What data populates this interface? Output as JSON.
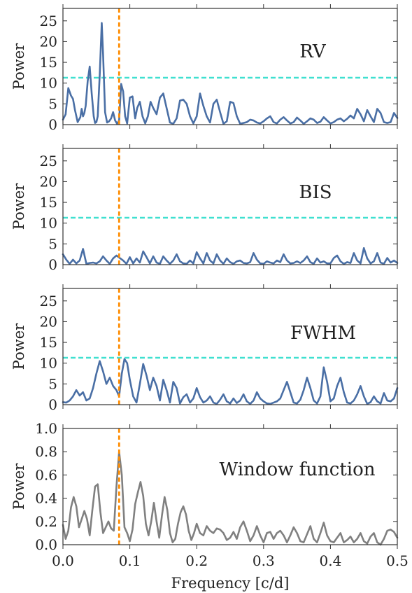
{
  "chart_data": [
    {
      "type": "line",
      "annotation": "RV",
      "ylabel": "Power",
      "xlabel": "",
      "xlim": [
        0,
        0.5
      ],
      "ylim": [
        0,
        28
      ],
      "yticks": [
        0,
        5,
        10,
        15,
        20,
        25
      ],
      "ytick_labels": [
        "0",
        "5",
        "10",
        "15",
        "20",
        "25"
      ],
      "threshold": 11.3,
      "marker_frequency": 0.084,
      "line_color": "#4a6fa5",
      "series": [
        {
          "x": [
            0,
            0.004,
            0.008,
            0.012,
            0.015,
            0.018,
            0.022,
            0.026,
            0.028,
            0.03,
            0.032,
            0.034,
            0.037,
            0.04,
            0.043,
            0.046,
            0.048,
            0.05,
            0.052,
            0.055,
            0.058,
            0.06,
            0.063,
            0.066,
            0.069,
            0.072,
            0.075,
            0.078,
            0.081,
            0.084,
            0.087,
            0.09,
            0.093,
            0.096,
            0.1,
            0.104,
            0.108,
            0.111,
            0.115,
            0.119,
            0.123,
            0.127,
            0.131,
            0.135,
            0.14,
            0.145,
            0.15,
            0.155,
            0.16,
            0.165,
            0.17,
            0.175,
            0.18,
            0.185,
            0.19,
            0.195,
            0.2,
            0.205,
            0.21,
            0.215,
            0.22,
            0.225,
            0.23,
            0.235,
            0.24,
            0.245,
            0.25,
            0.255,
            0.26,
            0.265,
            0.27,
            0.275,
            0.28,
            0.285,
            0.29,
            0.295,
            0.3,
            0.305,
            0.31,
            0.315,
            0.32,
            0.325,
            0.33,
            0.335,
            0.34,
            0.345,
            0.35,
            0.355,
            0.36,
            0.365,
            0.37,
            0.375,
            0.38,
            0.385,
            0.39,
            0.395,
            0.4,
            0.405,
            0.41,
            0.415,
            0.42,
            0.425,
            0.43,
            0.435,
            0.44,
            0.445,
            0.45,
            0.455,
            0.46,
            0.465,
            0.47,
            0.475,
            0.48,
            0.485,
            0.49,
            0.495,
            0.5
          ],
          "y": [
            1.2,
            2.5,
            8.8,
            7.0,
            6.2,
            3.5,
            0.6,
            1.8,
            3.8,
            2.0,
            2.8,
            4.5,
            10.5,
            14.0,
            7.5,
            2.0,
            0.4,
            0.6,
            2.0,
            12.0,
            24.5,
            17.0,
            3.0,
            0.5,
            0.8,
            1.5,
            3.0,
            1.0,
            0.2,
            1.0,
            9.8,
            8.0,
            2.0,
            0.3,
            6.5,
            6.8,
            1.5,
            4.0,
            5.5,
            2.0,
            0.3,
            2.0,
            5.5,
            4.0,
            2.5,
            6.5,
            7.5,
            4.0,
            0.5,
            0.2,
            1.5,
            5.8,
            6.0,
            5.0,
            2.0,
            0.3,
            2.0,
            7.5,
            4.5,
            2.0,
            0.5,
            5.0,
            6.0,
            3.0,
            0.2,
            0.8,
            5.5,
            5.2,
            2.0,
            0.2,
            0.4,
            0.6,
            1.2,
            1.0,
            0.5,
            0.3,
            0.8,
            1.5,
            2.0,
            0.6,
            0.3,
            1.2,
            1.8,
            1.0,
            0.3,
            0.6,
            1.7,
            1.0,
            0.2,
            0.8,
            1.5,
            1.2,
            0.4,
            0.7,
            1.8,
            1.0,
            0.3,
            0.6,
            1.2,
            1.5,
            0.8,
            1.4,
            2.2,
            1.5,
            3.8,
            2.5,
            0.8,
            3.5,
            2.0,
            0.6,
            3.8,
            2.8,
            0.6,
            0.4,
            0.6,
            2.8,
            1.6
          ]
        }
      ]
    },
    {
      "type": "line",
      "annotation": "BIS",
      "ylabel": "Power",
      "xlabel": "",
      "xlim": [
        0,
        0.5
      ],
      "ylim": [
        0,
        28
      ],
      "yticks": [
        0,
        5,
        10,
        15,
        20,
        25
      ],
      "ytick_labels": [
        "0",
        "5",
        "10",
        "15",
        "20",
        "25"
      ],
      "threshold": 11.3,
      "marker_frequency": 0.084,
      "line_color": "#4a6fa5",
      "series": [
        {
          "x": [
            0,
            0.005,
            0.01,
            0.015,
            0.02,
            0.025,
            0.03,
            0.035,
            0.04,
            0.045,
            0.05,
            0.055,
            0.06,
            0.065,
            0.07,
            0.075,
            0.08,
            0.085,
            0.09,
            0.095,
            0.1,
            0.105,
            0.11,
            0.115,
            0.12,
            0.125,
            0.13,
            0.135,
            0.14,
            0.145,
            0.15,
            0.155,
            0.16,
            0.165,
            0.17,
            0.175,
            0.18,
            0.185,
            0.19,
            0.195,
            0.2,
            0.205,
            0.21,
            0.215,
            0.22,
            0.225,
            0.23,
            0.235,
            0.24,
            0.245,
            0.25,
            0.255,
            0.26,
            0.265,
            0.27,
            0.275,
            0.28,
            0.285,
            0.29,
            0.295,
            0.3,
            0.305,
            0.31,
            0.315,
            0.32,
            0.325,
            0.33,
            0.335,
            0.34,
            0.345,
            0.35,
            0.355,
            0.36,
            0.365,
            0.37,
            0.375,
            0.38,
            0.385,
            0.39,
            0.395,
            0.4,
            0.405,
            0.41,
            0.415,
            0.42,
            0.425,
            0.43,
            0.435,
            0.44,
            0.445,
            0.45,
            0.455,
            0.46,
            0.465,
            0.47,
            0.475,
            0.48,
            0.485,
            0.49,
            0.495,
            0.5
          ],
          "y": [
            2.5,
            1.2,
            0.2,
            1.2,
            0.3,
            1.0,
            3.8,
            0.2,
            0.4,
            0.5,
            0.3,
            0.8,
            2.0,
            1.0,
            0.2,
            1.5,
            2.2,
            1.6,
            1.0,
            0.2,
            1.8,
            0.3,
            1.5,
            0.5,
            3.2,
            1.8,
            0.3,
            2.0,
            0.5,
            0.2,
            2.0,
            1.0,
            0.2,
            1.0,
            2.5,
            0.8,
            0.3,
            0.2,
            1.0,
            0.3,
            3.0,
            1.5,
            0.3,
            2.8,
            1.0,
            0.3,
            2.5,
            1.0,
            0.2,
            1.5,
            0.6,
            0.2,
            0.8,
            1.0,
            0.4,
            0.3,
            0.6,
            2.8,
            1.2,
            0.3,
            0.2,
            0.8,
            0.5,
            0.3,
            1.0,
            0.6,
            2.5,
            1.0,
            0.3,
            0.4,
            0.8,
            0.4,
            1.0,
            2.0,
            0.6,
            0.2,
            1.5,
            0.5,
            0.8,
            0.3,
            0.3,
            1.6,
            2.2,
            0.8,
            0.2,
            0.6,
            0.4,
            2.8,
            1.0,
            0.3,
            4.0,
            1.5,
            0.3,
            0.8,
            2.8,
            0.5,
            0.2,
            1.6,
            0.5,
            1.0,
            0.4
          ]
        }
      ]
    },
    {
      "type": "line",
      "annotation": "FWHM",
      "ylabel": "Power",
      "xlabel": "",
      "xlim": [
        0,
        0.5
      ],
      "ylim": [
        0,
        28
      ],
      "yticks": [
        0,
        5,
        10,
        15,
        20,
        25
      ],
      "ytick_labels": [
        "0",
        "5",
        "10",
        "15",
        "20",
        "25"
      ],
      "threshold": 11.3,
      "marker_frequency": 0.084,
      "line_color": "#4a6fa5",
      "series": [
        {
          "x": [
            0,
            0.005,
            0.01,
            0.015,
            0.02,
            0.025,
            0.03,
            0.035,
            0.04,
            0.045,
            0.05,
            0.055,
            0.06,
            0.065,
            0.07,
            0.075,
            0.08,
            0.084,
            0.088,
            0.092,
            0.096,
            0.1,
            0.105,
            0.11,
            0.115,
            0.12,
            0.125,
            0.13,
            0.135,
            0.14,
            0.145,
            0.15,
            0.155,
            0.16,
            0.165,
            0.17,
            0.175,
            0.18,
            0.185,
            0.19,
            0.195,
            0.2,
            0.205,
            0.21,
            0.215,
            0.22,
            0.225,
            0.23,
            0.235,
            0.24,
            0.245,
            0.25,
            0.255,
            0.26,
            0.265,
            0.27,
            0.275,
            0.28,
            0.285,
            0.29,
            0.295,
            0.3,
            0.305,
            0.31,
            0.315,
            0.32,
            0.325,
            0.33,
            0.335,
            0.34,
            0.345,
            0.35,
            0.355,
            0.36,
            0.365,
            0.37,
            0.375,
            0.38,
            0.385,
            0.39,
            0.395,
            0.4,
            0.405,
            0.41,
            0.415,
            0.42,
            0.425,
            0.43,
            0.435,
            0.44,
            0.445,
            0.45,
            0.455,
            0.46,
            0.465,
            0.47,
            0.475,
            0.48,
            0.485,
            0.49,
            0.495,
            0.5
          ],
          "y": [
            0.6,
            0.5,
            1.0,
            2.0,
            3.5,
            2.2,
            3.0,
            1.0,
            1.5,
            4.0,
            7.5,
            10.5,
            8.0,
            5.0,
            6.5,
            4.5,
            3.5,
            2.0,
            7.5,
            11.0,
            10.0,
            6.0,
            2.0,
            0.5,
            5.0,
            9.8,
            7.0,
            3.5,
            6.5,
            4.5,
            1.0,
            6.0,
            3.5,
            0.5,
            5.5,
            4.0,
            0.3,
            1.8,
            2.5,
            0.5,
            1.5,
            4.0,
            1.8,
            0.5,
            1.0,
            2.0,
            0.5,
            0.2,
            1.2,
            2.5,
            0.8,
            0.3,
            1.5,
            0.4,
            1.0,
            2.5,
            0.8,
            0.2,
            1.0,
            3.0,
            1.5,
            0.8,
            0.3,
            0.2,
            0.5,
            0.8,
            1.5,
            3.5,
            5.5,
            3.0,
            0.5,
            0.3,
            1.2,
            3.5,
            6.5,
            4.0,
            1.0,
            0.3,
            2.0,
            9.0,
            5.5,
            0.8,
            1.5,
            4.5,
            6.5,
            3.0,
            0.5,
            0.3,
            1.0,
            2.5,
            4.5,
            2.0,
            0.2,
            0.6,
            2.0,
            0.8,
            0.3,
            2.8,
            1.0,
            0.8,
            1.5,
            4.0
          ]
        }
      ]
    },
    {
      "type": "line",
      "annotation": "Window function",
      "ylabel": "Power",
      "xlabel": "Frequency [c/d]",
      "xlim": [
        0,
        0.5
      ],
      "ylim": [
        0,
        1.0
      ],
      "yticks": [
        0,
        0.2,
        0.4,
        0.6,
        0.8,
        1.0
      ],
      "ytick_labels": [
        "0.0",
        "0.2",
        "0.4",
        "0.6",
        "0.8",
        "1.0"
      ],
      "xticks": [
        0,
        0.1,
        0.2,
        0.3,
        0.4,
        0.5
      ],
      "xtick_labels": [
        "0.0",
        "0.1",
        "0.2",
        "0.3",
        "0.4",
        "0.5"
      ],
      "marker_frequency": 0.084,
      "line_color": "#808080",
      "series": [
        {
          "x": [
            0,
            0.004,
            0.008,
            0.012,
            0.016,
            0.02,
            0.024,
            0.028,
            0.032,
            0.036,
            0.04,
            0.044,
            0.048,
            0.052,
            0.056,
            0.06,
            0.064,
            0.068,
            0.072,
            0.076,
            0.08,
            0.084,
            0.088,
            0.092,
            0.096,
            0.1,
            0.104,
            0.108,
            0.112,
            0.116,
            0.12,
            0.124,
            0.128,
            0.132,
            0.136,
            0.14,
            0.144,
            0.148,
            0.152,
            0.156,
            0.16,
            0.164,
            0.168,
            0.172,
            0.176,
            0.18,
            0.184,
            0.188,
            0.192,
            0.196,
            0.2,
            0.205,
            0.21,
            0.215,
            0.22,
            0.225,
            0.23,
            0.235,
            0.24,
            0.245,
            0.25,
            0.255,
            0.26,
            0.265,
            0.27,
            0.275,
            0.28,
            0.285,
            0.29,
            0.295,
            0.3,
            0.305,
            0.31,
            0.315,
            0.32,
            0.325,
            0.33,
            0.335,
            0.34,
            0.345,
            0.35,
            0.355,
            0.36,
            0.365,
            0.37,
            0.375,
            0.38,
            0.385,
            0.39,
            0.395,
            0.4,
            0.405,
            0.41,
            0.415,
            0.42,
            0.425,
            0.43,
            0.435,
            0.44,
            0.445,
            0.45,
            0.455,
            0.46,
            0.465,
            0.47,
            0.475,
            0.48,
            0.485,
            0.49,
            0.495,
            0.5
          ],
          "y": [
            0.17,
            0.05,
            0.12,
            0.32,
            0.41,
            0.33,
            0.15,
            0.22,
            0.29,
            0.22,
            0.08,
            0.3,
            0.5,
            0.52,
            0.28,
            0.1,
            0.15,
            0.2,
            0.14,
            0.12,
            0.5,
            0.8,
            0.6,
            0.15,
            0.1,
            0.03,
            0.13,
            0.35,
            0.45,
            0.54,
            0.42,
            0.18,
            0.08,
            0.2,
            0.36,
            0.2,
            0.06,
            0.25,
            0.41,
            0.3,
            0.1,
            0.02,
            0.05,
            0.18,
            0.28,
            0.33,
            0.26,
            0.12,
            0.04,
            0.1,
            0.18,
            0.1,
            0.08,
            0.16,
            0.12,
            0.1,
            0.14,
            0.13,
            0.1,
            0.04,
            0.06,
            0.11,
            0.05,
            0.15,
            0.2,
            0.12,
            0.03,
            0.08,
            0.16,
            0.08,
            0.02,
            0.1,
            0.11,
            0.05,
            0.1,
            0.12,
            0.08,
            0.02,
            0.08,
            0.15,
            0.1,
            0.03,
            0.02,
            0.09,
            0.16,
            0.05,
            0.02,
            0.1,
            0.19,
            0.08,
            0.03,
            0.02,
            0.06,
            0.1,
            0.02,
            0.04,
            0.07,
            0.02,
            0.05,
            0.1,
            0.03,
            0.01,
            0.07,
            0.1,
            0.02,
            0.0,
            0.05,
            0.12,
            0.13,
            0.11,
            0.06
          ]
        }
      ]
    }
  ],
  "colors": {
    "threshold_line": "#40e0d0",
    "marker_line": "#ff8c00",
    "axis": "#333333"
  }
}
